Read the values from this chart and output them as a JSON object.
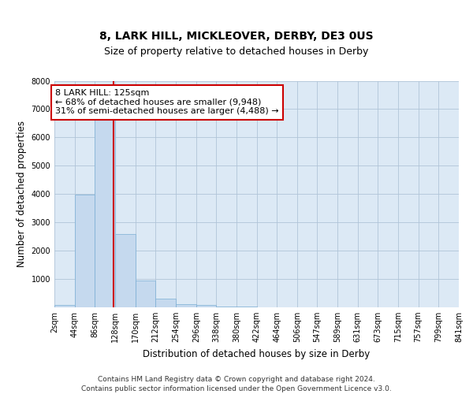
{
  "title": "8, LARK HILL, MICKLEOVER, DERBY, DE3 0US",
  "subtitle": "Size of property relative to detached houses in Derby",
  "xlabel": "Distribution of detached houses by size in Derby",
  "ylabel": "Number of detached properties",
  "bar_color": "#c5d9ee",
  "bar_edge_color": "#7aaed4",
  "bin_edges": [
    2,
    44,
    86,
    128,
    170,
    212,
    254,
    296,
    338,
    380,
    422,
    464,
    506,
    547,
    589,
    631,
    673,
    715,
    757,
    799,
    841
  ],
  "bar_heights": [
    90,
    3980,
    6620,
    2600,
    950,
    310,
    120,
    90,
    40,
    15,
    8,
    4,
    2,
    1,
    1,
    0,
    0,
    0,
    0,
    0
  ],
  "vline_x": 125,
  "vline_color": "#cc0000",
  "annotation_text": "8 LARK HILL: 125sqm\n← 68% of detached houses are smaller (9,948)\n31% of semi-detached houses are larger (4,488) →",
  "annotation_box_color": "#ffffff",
  "annotation_box_edge": "#cc0000",
  "ylim": [
    0,
    8000
  ],
  "yticks": [
    0,
    1000,
    2000,
    3000,
    4000,
    5000,
    6000,
    7000,
    8000
  ],
  "tick_labels": [
    "2sqm",
    "44sqm",
    "86sqm",
    "128sqm",
    "170sqm",
    "212sqm",
    "254sqm",
    "296sqm",
    "338sqm",
    "380sqm",
    "422sqm",
    "464sqm",
    "506sqm",
    "547sqm",
    "589sqm",
    "631sqm",
    "673sqm",
    "715sqm",
    "757sqm",
    "799sqm",
    "841sqm"
  ],
  "footer_text": "Contains HM Land Registry data © Crown copyright and database right 2024.\nContains public sector information licensed under the Open Government Licence v3.0.",
  "bg_color": "#ffffff",
  "plot_bg_color": "#dce9f5",
  "grid_color": "#b0c4d8",
  "title_fontsize": 10,
  "subtitle_fontsize": 9,
  "axis_label_fontsize": 8.5,
  "tick_fontsize": 7,
  "footer_fontsize": 6.5,
  "annotation_fontsize": 8
}
